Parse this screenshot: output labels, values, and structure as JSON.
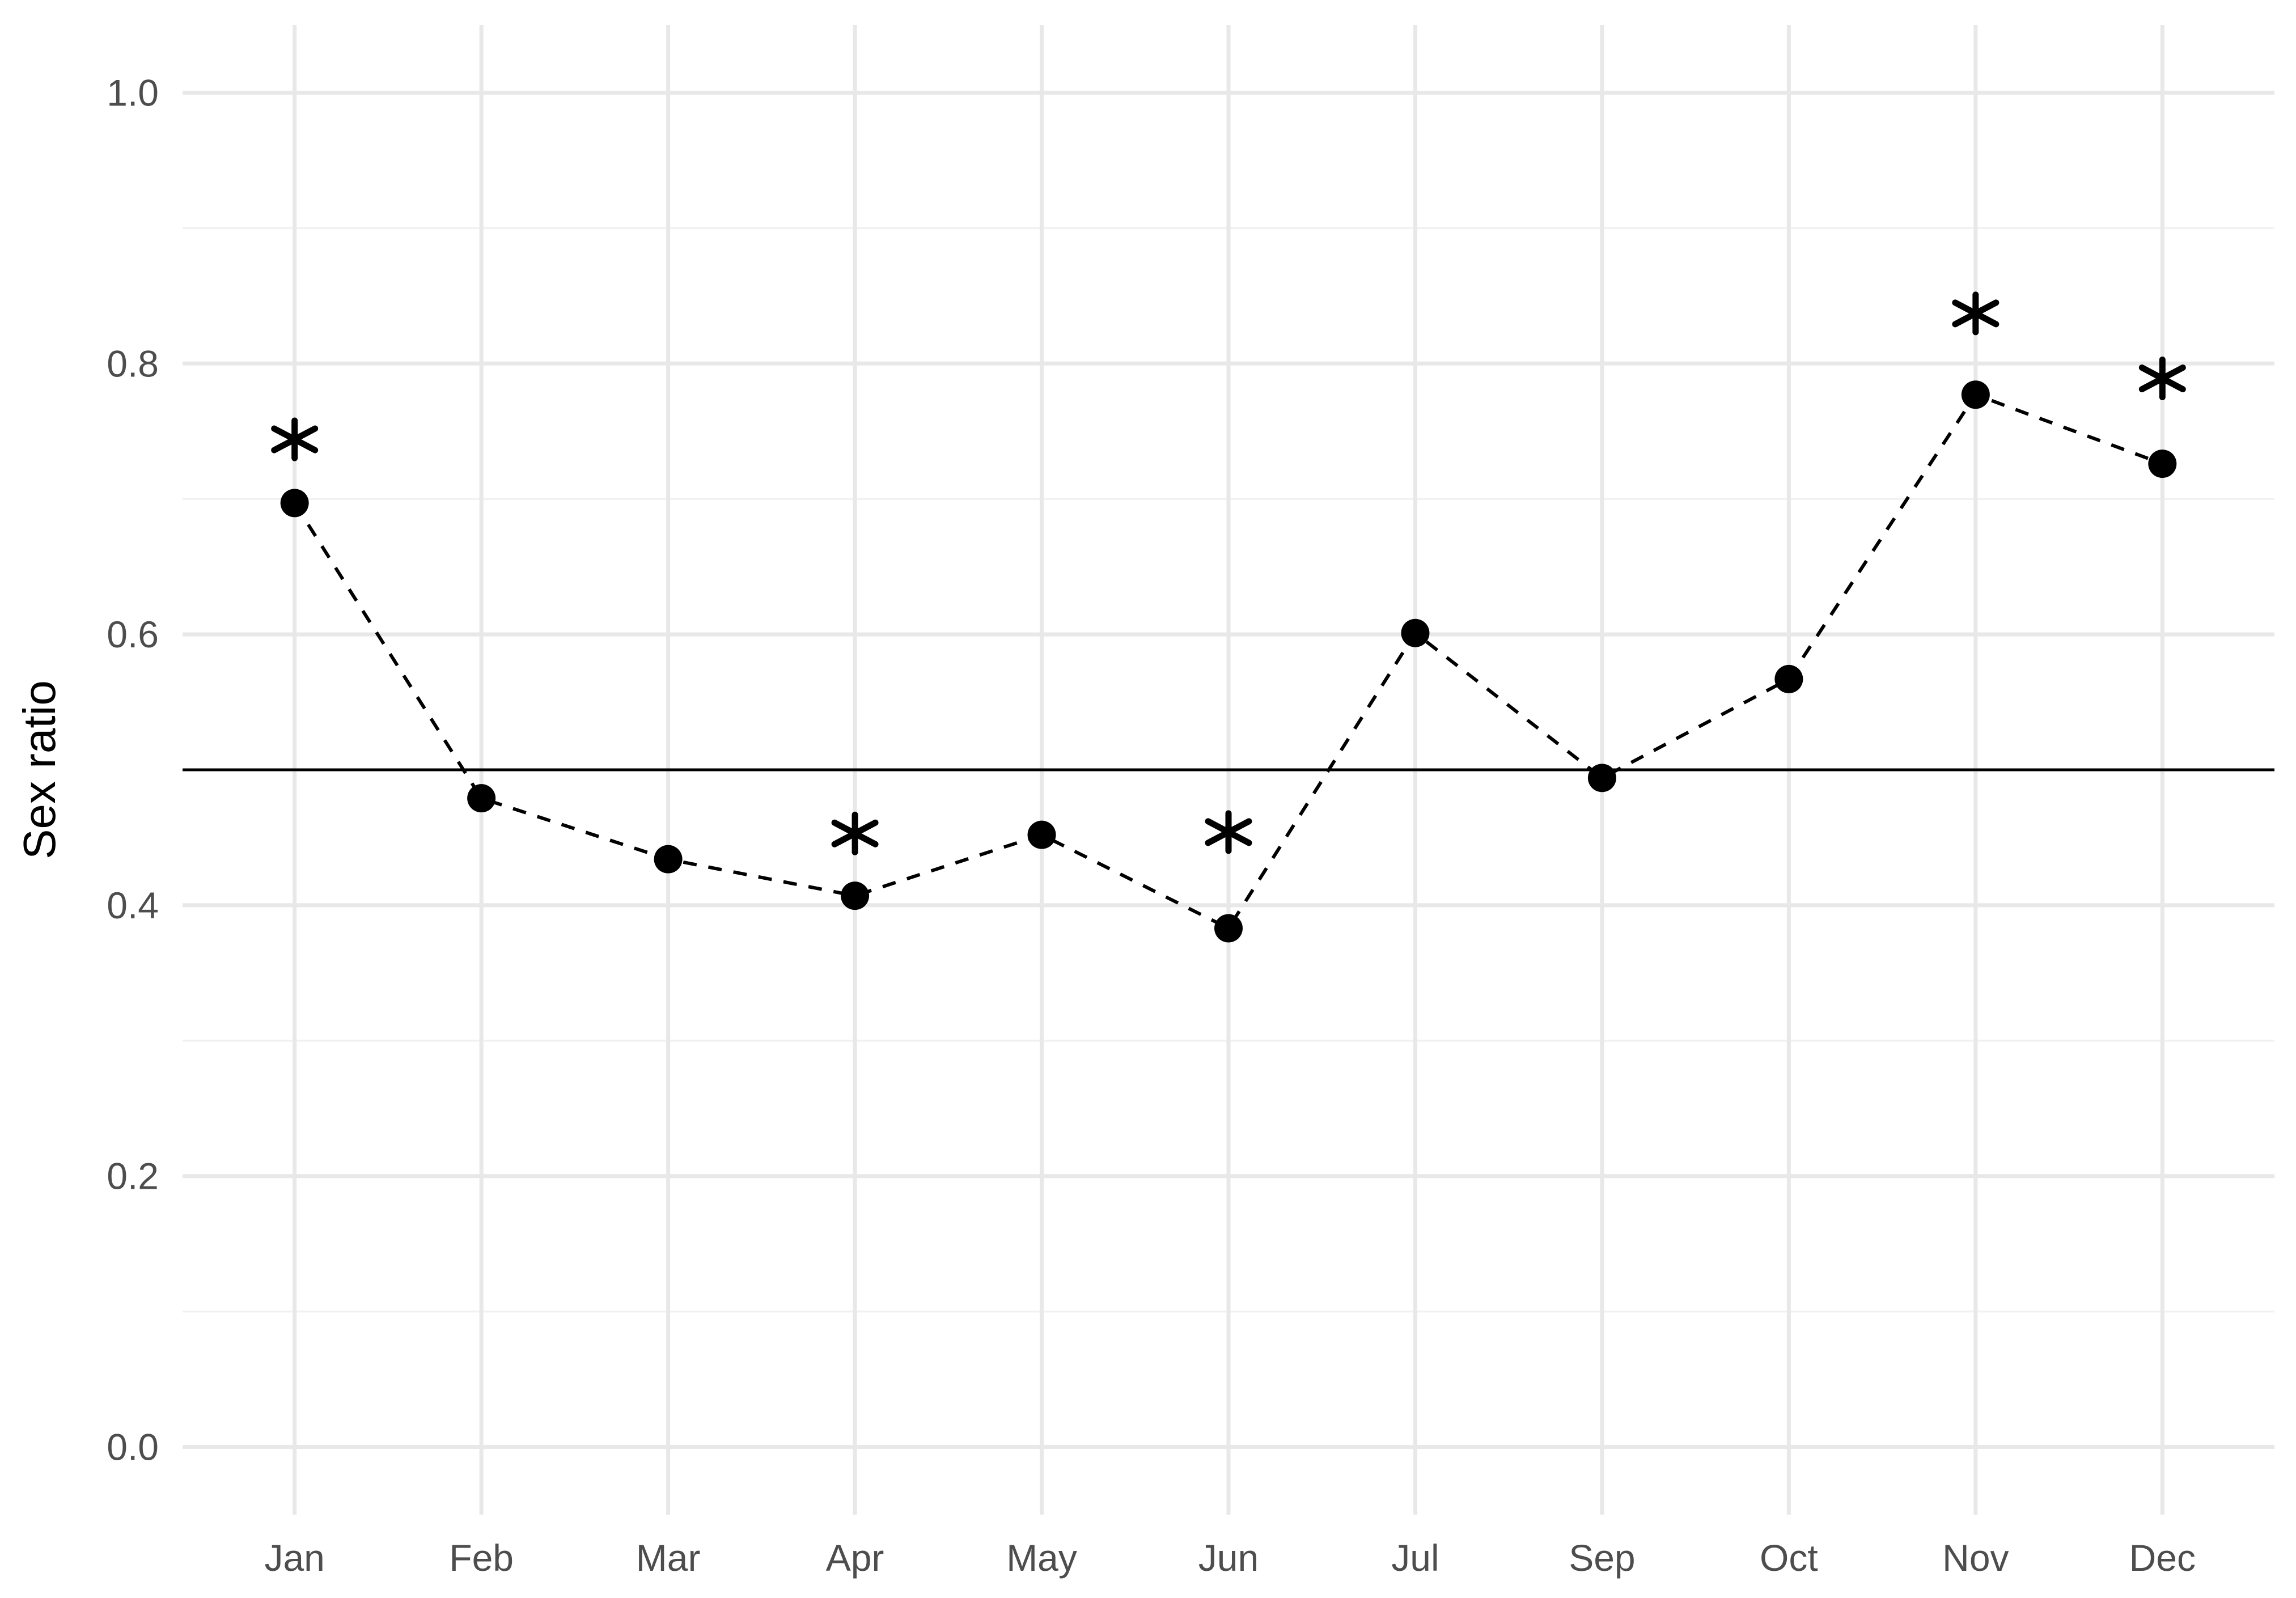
{
  "chart_data": {
    "type": "line",
    "title": "",
    "xlabel": "",
    "ylabel": "Sex ratio",
    "categories": [
      "Jan",
      "Feb",
      "Mar",
      "Apr",
      "May",
      "Jun",
      "Jul",
      "Sep",
      "Oct",
      "Nov",
      "Dec"
    ],
    "series": [
      {
        "name": "sex_ratio",
        "values": [
          0.697,
          0.479,
          0.434,
          0.407,
          0.452,
          0.383,
          0.601,
          0.494,
          0.567,
          0.777,
          0.726
        ],
        "line_style": "dashed",
        "marker": "filled-circle",
        "color": "#000000"
      }
    ],
    "annotations": {
      "significance_markers": [
        {
          "category": "Jan",
          "y": 0.744,
          "symbol": "asterisk"
        },
        {
          "category": "Apr",
          "y": 0.453,
          "symbol": "asterisk"
        },
        {
          "category": "Jun",
          "y": 0.454,
          "symbol": "asterisk"
        },
        {
          "category": "Nov",
          "y": 0.837,
          "symbol": "asterisk"
        },
        {
          "category": "Dec",
          "y": 0.789,
          "symbol": "asterisk"
        }
      ],
      "reference_line": {
        "y": 0.5,
        "style": "solid",
        "color": "#000000"
      }
    },
    "y_axis": {
      "ticks": [
        0.0,
        0.2,
        0.4,
        0.6,
        0.8,
        1.0
      ],
      "tick_labels": [
        "0.0",
        "0.2",
        "0.4",
        "0.6",
        "0.8",
        "1.0"
      ],
      "minor_gridlines": [
        0.1,
        0.3,
        0.5,
        0.7,
        0.9
      ],
      "lim": [
        -0.05,
        1.05
      ]
    },
    "x_axis": {
      "tick_labels": [
        "Jan",
        "Feb",
        "Mar",
        "Apr",
        "May",
        "Jun",
        "Jul",
        "Sep",
        "Oct",
        "Nov",
        "Dec"
      ]
    },
    "grid": {
      "on": true,
      "major_color": "#e8e8e8",
      "minor_color": "#f1f1f1"
    },
    "legend": "none",
    "colors": {
      "background": "#ffffff",
      "axis_text": "#4d4d4d",
      "axis_title": "#000000",
      "series": "#000000"
    }
  }
}
